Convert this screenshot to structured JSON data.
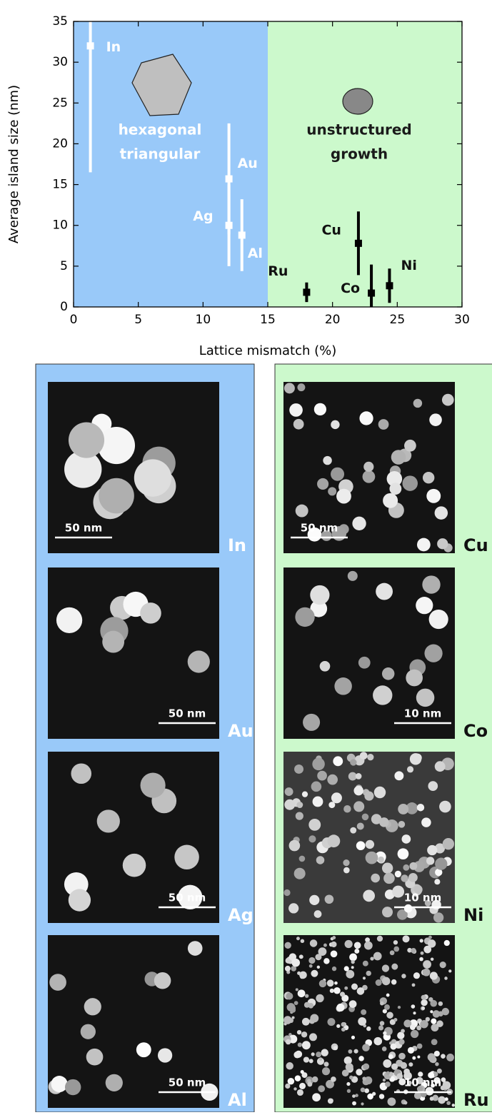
{
  "chart_data": {
    "type": "scatter",
    "xlabel": "Lattice mismatch (%)",
    "ylabel": "Average island size (nm)",
    "xlim": [
      0,
      30
    ],
    "ylim": [
      0,
      35
    ],
    "xticks": [
      0,
      5,
      10,
      15,
      20,
      25,
      30
    ],
    "yticks": [
      0,
      5,
      10,
      15,
      20,
      25,
      30,
      35
    ],
    "regions": [
      {
        "x": [
          0,
          15
        ],
        "color": "#99c9f9",
        "text_color": "#ffffff",
        "label_lines": [
          "hexagonal",
          "triangular"
        ]
      },
      {
        "x": [
          15,
          30
        ],
        "color": "#ccf9cc",
        "text_color": "#1a1a1a",
        "label_lines": [
          "unstructured",
          "growth"
        ]
      }
    ],
    "series": [
      {
        "color": "#ffffff",
        "point_labels": [
          "In",
          "Au",
          "Ag",
          "Al"
        ],
        "x": [
          1.3,
          12,
          12,
          13
        ],
        "values": [
          32,
          15.7,
          10,
          8.8
        ],
        "errors": [
          15.5,
          6.8,
          5,
          4.4
        ]
      },
      {
        "color": "#000000",
        "point_labels": [
          "Cu",
          "Co",
          "Ni",
          "Ru"
        ],
        "x": [
          22,
          23,
          24.4,
          18
        ],
        "values": [
          7.8,
          1.7,
          2.6,
          1.8
        ],
        "errors": [
          3.9,
          3.5,
          2.1,
          1.2
        ]
      }
    ]
  },
  "panels": {
    "left": [
      {
        "label": "In",
        "scale": "50 nm"
      },
      {
        "label": "Au",
        "scale": "50 nm"
      },
      {
        "label": "Ag",
        "scale": "50 nm"
      },
      {
        "label": "Al",
        "scale": "50 nm"
      }
    ],
    "right": [
      {
        "label": "Cu",
        "scale": "50 nm"
      },
      {
        "label": "Co",
        "scale": "10 nm"
      },
      {
        "label": "Ni",
        "scale": "10 nm"
      },
      {
        "label": "Ru",
        "scale": "10 nm"
      }
    ]
  }
}
